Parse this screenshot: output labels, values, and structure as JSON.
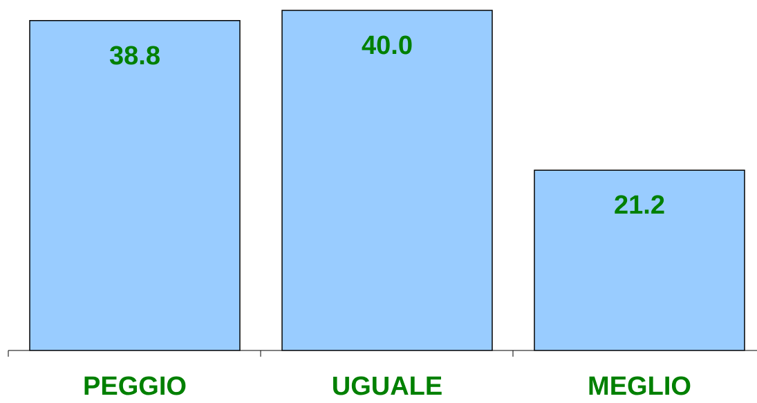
{
  "chart_data": {
    "type": "bar",
    "categories": [
      "PEGGIO",
      "UGUALE",
      "MEGLIO"
    ],
    "values": [
      38.8,
      40.0,
      21.2
    ],
    "value_labels": [
      "38.8",
      "40.0",
      "21.2"
    ],
    "title": "",
    "xlabel": "",
    "ylabel": "",
    "ylim": [
      0,
      40.0
    ],
    "grid": false,
    "legend": "none",
    "colors": {
      "bar_fill": "#99ccff",
      "bar_stroke": "#000000",
      "label_text": "#008000",
      "axis": "#000000"
    }
  }
}
